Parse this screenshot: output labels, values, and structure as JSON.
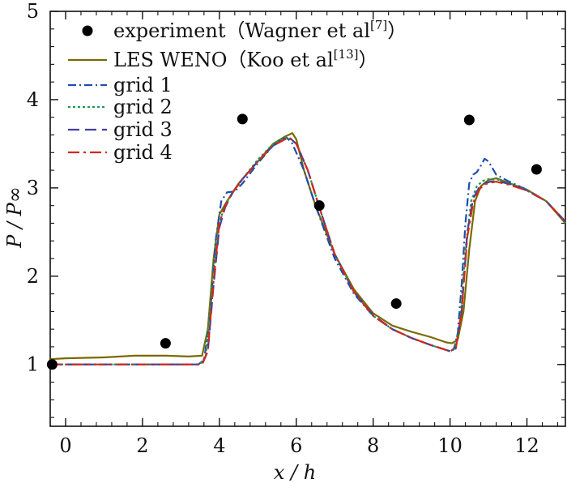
{
  "chart_data": {
    "type": "line",
    "title": "",
    "xlabel": "x / h",
    "ylabel": "P / P∞",
    "xlim": [
      -0.4,
      13.0
    ],
    "ylim": [
      0.3,
      5.0
    ],
    "xticks": [
      0,
      2,
      4,
      6,
      8,
      10,
      12
    ],
    "yticks": [
      1,
      2,
      3,
      4,
      5
    ],
    "legend_position": "top-left",
    "experiment": {
      "name": "experiment（Wagner et al[7]）",
      "label_main": "experiment（Wagner et al",
      "label_ref": "[7]",
      "label_close": "）",
      "x": [
        -0.35,
        2.6,
        4.6,
        6.6,
        8.6,
        10.5,
        12.25
      ],
      "y": [
        1.0,
        1.24,
        3.78,
        2.8,
        1.69,
        3.77,
        3.21
      ]
    },
    "series": [
      {
        "name": "LES WENO（Koo et al[13]）",
        "label_main": "LES WENO（Koo et al",
        "label_ref": "[13]",
        "label_close": "）",
        "color": "#7a6a00",
        "dash": "",
        "x": [
          -0.4,
          0,
          1,
          1.8,
          2.6,
          3.2,
          3.55,
          3.7,
          3.85,
          4.0,
          4.2,
          4.5,
          5.0,
          5.4,
          5.7,
          5.9,
          6.0,
          6.2,
          6.5,
          7.0,
          7.5,
          8.0,
          8.5,
          9.0,
          9.5,
          9.9,
          10.05,
          10.2,
          10.35,
          10.5,
          10.65,
          10.8,
          11.0,
          11.2,
          11.5,
          12.0,
          12.5,
          13.0
        ],
        "y": [
          1.06,
          1.07,
          1.08,
          1.1,
          1.1,
          1.09,
          1.1,
          1.4,
          2.2,
          2.7,
          2.85,
          3.05,
          3.3,
          3.5,
          3.58,
          3.62,
          3.55,
          3.2,
          2.8,
          2.25,
          1.85,
          1.58,
          1.44,
          1.37,
          1.31,
          1.25,
          1.24,
          1.28,
          1.6,
          2.3,
          2.85,
          3.02,
          3.09,
          3.11,
          3.06,
          2.98,
          2.85,
          2.6
        ]
      },
      {
        "name": "grid 1",
        "label_main": "grid 1",
        "color": "#1f4fa8",
        "dash": "10 4 2 4",
        "x": [
          -0.4,
          0,
          1,
          2,
          3,
          3.45,
          3.6,
          3.75,
          3.9,
          4.05,
          4.2,
          4.4,
          4.6,
          5.0,
          5.4,
          5.6,
          5.75,
          5.9,
          6.2,
          6.5,
          7.0,
          7.5,
          8.0,
          8.5,
          9.0,
          9.5,
          10.0,
          10.1,
          10.2,
          10.3,
          10.4,
          10.5,
          10.6,
          10.7,
          10.8,
          10.9,
          11.0,
          11.2,
          11.5,
          12.0,
          12.5,
          13.0
        ],
        "y": [
          1.0,
          1.0,
          1.0,
          1.0,
          1.0,
          1.0,
          1.05,
          1.5,
          2.4,
          2.85,
          2.95,
          2.96,
          3.05,
          3.28,
          3.48,
          3.55,
          3.57,
          3.5,
          3.2,
          2.8,
          2.2,
          1.8,
          1.55,
          1.4,
          1.3,
          1.22,
          1.15,
          1.18,
          1.35,
          1.9,
          2.6,
          3.05,
          3.15,
          3.18,
          3.25,
          3.33,
          3.3,
          3.15,
          3.08,
          2.98,
          2.85,
          2.62
        ]
      },
      {
        "name": "grid 2",
        "label_main": "grid 2",
        "color": "#1a9a55",
        "dash": "3 3",
        "x": [
          -0.4,
          0,
          1,
          2,
          3,
          3.5,
          3.65,
          3.8,
          3.95,
          4.1,
          4.3,
          4.6,
          5.0,
          5.4,
          5.65,
          5.8,
          6.0,
          6.3,
          6.6,
          7.0,
          7.5,
          8.0,
          8.5,
          9.0,
          9.5,
          10.0,
          10.1,
          10.25,
          10.4,
          10.55,
          10.7,
          10.85,
          11.0,
          11.2,
          11.5,
          12.0,
          12.5,
          13.0
        ],
        "y": [
          1.0,
          1.0,
          1.0,
          1.0,
          1.0,
          1.0,
          1.1,
          1.8,
          2.5,
          2.75,
          2.92,
          3.1,
          3.32,
          3.5,
          3.56,
          3.57,
          3.5,
          3.2,
          2.78,
          2.25,
          1.82,
          1.55,
          1.4,
          1.3,
          1.22,
          1.15,
          1.17,
          1.45,
          2.3,
          2.85,
          3.02,
          3.08,
          3.1,
          3.1,
          3.06,
          2.98,
          2.85,
          2.62
        ]
      },
      {
        "name": "grid 3",
        "label_main": "grid 3",
        "color": "#4040a0",
        "dash": "14 7",
        "x": [
          -0.4,
          0,
          1,
          2,
          3,
          3.55,
          3.7,
          3.85,
          4.0,
          4.15,
          4.35,
          4.6,
          5.0,
          5.4,
          5.7,
          5.85,
          6.0,
          6.3,
          6.6,
          7.0,
          7.5,
          8.0,
          8.5,
          9.0,
          9.5,
          10.0,
          10.15,
          10.3,
          10.45,
          10.6,
          10.75,
          10.9,
          11.05,
          11.2,
          11.5,
          12.0,
          12.5,
          13.0
        ],
        "y": [
          1.0,
          1.0,
          1.0,
          1.0,
          1.0,
          1.0,
          1.15,
          1.9,
          2.55,
          2.78,
          2.95,
          3.1,
          3.3,
          3.48,
          3.55,
          3.56,
          3.5,
          3.2,
          2.78,
          2.25,
          1.82,
          1.56,
          1.4,
          1.3,
          1.22,
          1.15,
          1.18,
          1.6,
          2.5,
          2.88,
          3.0,
          3.05,
          3.07,
          3.08,
          3.05,
          2.97,
          2.85,
          2.62
        ]
      },
      {
        "name": "grid 4",
        "label_main": "grid 4",
        "color": "#d02a1e",
        "dash": "14 5 3 5",
        "x": [
          -0.4,
          0,
          1,
          2,
          3,
          3.55,
          3.7,
          3.85,
          4.0,
          4.15,
          4.35,
          4.6,
          5.0,
          5.4,
          5.7,
          5.85,
          6.0,
          6.3,
          6.6,
          7.0,
          7.5,
          8.0,
          8.5,
          9.0,
          9.5,
          10.0,
          10.15,
          10.3,
          10.45,
          10.6,
          10.75,
          10.9,
          11.05,
          11.2,
          11.5,
          12.0,
          12.5,
          13.0
        ],
        "y": [
          1.0,
          1.0,
          1.0,
          1.0,
          1.0,
          1.0,
          1.15,
          1.95,
          2.6,
          2.8,
          2.95,
          3.1,
          3.3,
          3.48,
          3.55,
          3.56,
          3.5,
          3.2,
          2.78,
          2.25,
          1.82,
          1.55,
          1.4,
          1.3,
          1.22,
          1.15,
          1.18,
          1.6,
          2.45,
          2.83,
          2.98,
          3.04,
          3.06,
          3.07,
          3.04,
          2.97,
          2.85,
          2.62
        ]
      }
    ]
  }
}
